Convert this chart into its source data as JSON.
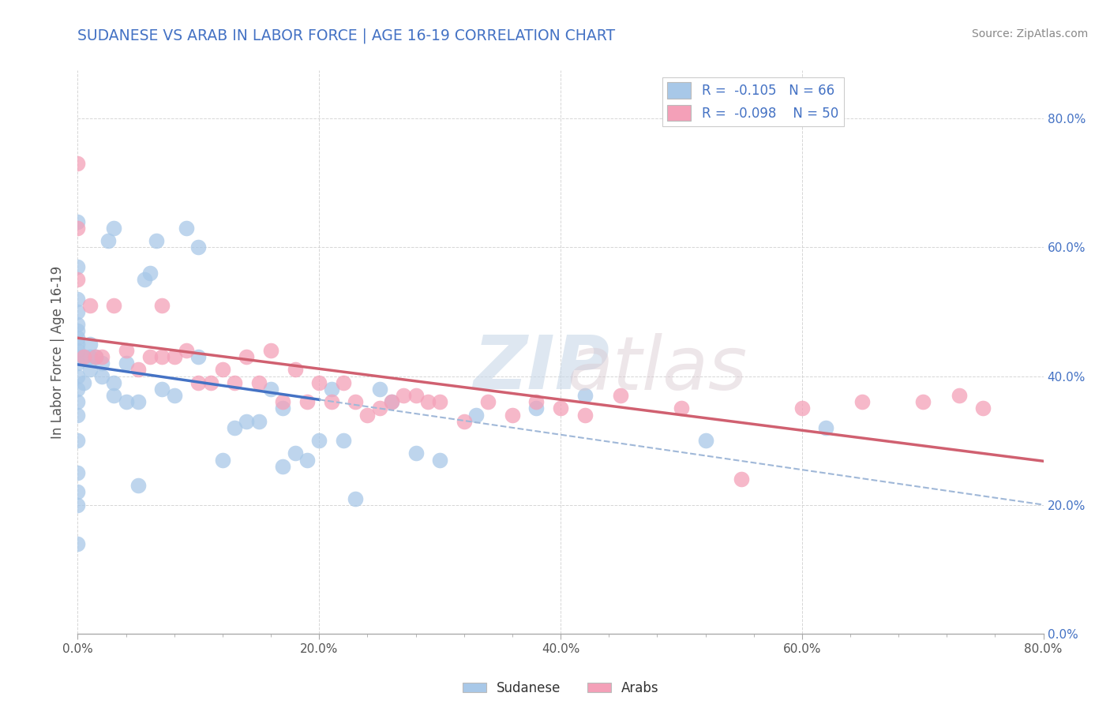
{
  "title": "SUDANESE VS ARAB IN LABOR FORCE | AGE 16-19 CORRELATION CHART",
  "source": "Source: ZipAtlas.com",
  "ylabel": "In Labor Force | Age 16-19",
  "xlim": [
    0.0,
    0.8
  ],
  "ylim": [
    0.0,
    0.875
  ],
  "sudanese_R": -0.105,
  "sudanese_N": 66,
  "arab_R": -0.098,
  "arab_N": 50,
  "sudanese_color": "#a8c8e8",
  "arab_color": "#f4a0b8",
  "sudanese_line_color": "#4472c4",
  "arab_line_color": "#d06070",
  "title_color": "#4472c4",
  "legend_text_color": "#4472c4",
  "legend_r_color": "#e06000",
  "background_color": "#ffffff",
  "grid_color": "#cccccc",
  "sudanese_x": [
    0.0,
    0.0,
    0.0,
    0.0,
    0.0,
    0.0,
    0.0,
    0.0,
    0.0,
    0.0,
    0.0,
    0.0,
    0.0,
    0.0,
    0.0,
    0.0,
    0.0,
    0.0,
    0.0,
    0.0,
    0.005,
    0.005,
    0.01,
    0.01,
    0.01,
    0.015,
    0.02,
    0.02,
    0.025,
    0.03,
    0.03,
    0.03,
    0.04,
    0.04,
    0.05,
    0.05,
    0.055,
    0.06,
    0.065,
    0.07,
    0.08,
    0.09,
    0.1,
    0.1,
    0.12,
    0.13,
    0.14,
    0.15,
    0.16,
    0.17,
    0.17,
    0.18,
    0.19,
    0.2,
    0.21,
    0.22,
    0.23,
    0.25,
    0.26,
    0.28,
    0.3,
    0.33,
    0.38,
    0.42,
    0.52,
    0.62
  ],
  "sudanese_y": [
    0.14,
    0.2,
    0.22,
    0.25,
    0.3,
    0.34,
    0.36,
    0.38,
    0.4,
    0.42,
    0.43,
    0.44,
    0.45,
    0.46,
    0.47,
    0.48,
    0.5,
    0.52,
    0.57,
    0.64,
    0.39,
    0.43,
    0.41,
    0.43,
    0.45,
    0.43,
    0.4,
    0.42,
    0.61,
    0.37,
    0.39,
    0.63,
    0.36,
    0.42,
    0.23,
    0.36,
    0.55,
    0.56,
    0.61,
    0.38,
    0.37,
    0.63,
    0.43,
    0.6,
    0.27,
    0.32,
    0.33,
    0.33,
    0.38,
    0.26,
    0.35,
    0.28,
    0.27,
    0.3,
    0.38,
    0.3,
    0.21,
    0.38,
    0.36,
    0.28,
    0.27,
    0.34,
    0.35,
    0.37,
    0.3,
    0.32
  ],
  "arab_x": [
    0.0,
    0.0,
    0.0,
    0.005,
    0.01,
    0.015,
    0.02,
    0.03,
    0.04,
    0.05,
    0.06,
    0.07,
    0.07,
    0.08,
    0.09,
    0.1,
    0.11,
    0.12,
    0.13,
    0.14,
    0.15,
    0.16,
    0.17,
    0.18,
    0.19,
    0.2,
    0.21,
    0.22,
    0.23,
    0.24,
    0.25,
    0.26,
    0.27,
    0.28,
    0.29,
    0.3,
    0.32,
    0.34,
    0.36,
    0.38,
    0.4,
    0.42,
    0.45,
    0.5,
    0.55,
    0.6,
    0.65,
    0.7,
    0.73,
    0.75
  ],
  "arab_y": [
    0.73,
    0.63,
    0.55,
    0.43,
    0.51,
    0.43,
    0.43,
    0.51,
    0.44,
    0.41,
    0.43,
    0.51,
    0.43,
    0.43,
    0.44,
    0.39,
    0.39,
    0.41,
    0.39,
    0.43,
    0.39,
    0.44,
    0.36,
    0.41,
    0.36,
    0.39,
    0.36,
    0.39,
    0.36,
    0.34,
    0.35,
    0.36,
    0.37,
    0.37,
    0.36,
    0.36,
    0.33,
    0.36,
    0.34,
    0.36,
    0.35,
    0.34,
    0.37,
    0.35,
    0.24,
    0.35,
    0.36,
    0.36,
    0.37,
    0.35
  ]
}
